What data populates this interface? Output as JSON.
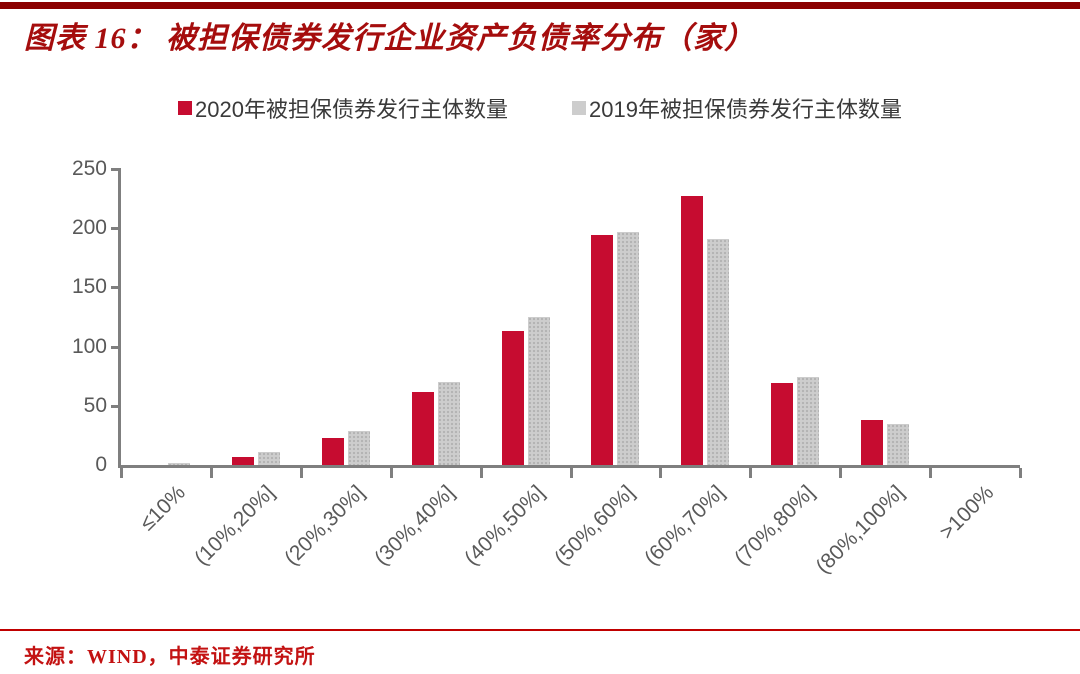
{
  "header": {
    "figure_title": "图表 16： 被担保债券发行企业资产负债率分布（家）"
  },
  "footer": {
    "source": "来源：WIND，中泰证券研究所"
  },
  "colors": {
    "title_red": "#a50d0d",
    "top_rule": "#8b0000",
    "bottom_rule": "#c00000",
    "source_red": "#c31212",
    "axis_gray": "#7f7f7f",
    "tick_text_gray": "#595959",
    "legend_text": "#3a3a3a"
  },
  "chart_data": {
    "type": "bar",
    "title": "被担保债券发行企业资产负债率分布（家）",
    "categories": [
      "≤10%",
      "(10%,20%]",
      "(20%,30%]",
      "(30%,40%]",
      "(40%,50%]",
      "(50%,60%]",
      "(60%,70%]",
      "(70%,80%]",
      "(80%,100%]",
      ">100%"
    ],
    "series": [
      {
        "name": "2020年被担保债券发行主体数量",
        "color": "#c60c30",
        "pattern": "solid",
        "values": [
          0,
          7,
          23,
          62,
          113,
          194,
          227,
          69,
          38,
          0
        ]
      },
      {
        "name": "2019年被担保债券发行主体数量",
        "color": "#cdcdcd",
        "pattern": "dots",
        "values": [
          2,
          11,
          29,
          70,
          125,
          197,
          191,
          74,
          35,
          0
        ]
      }
    ],
    "xlabel": "",
    "ylabel": "",
    "ylim": [
      0,
      250
    ],
    "yticks": [
      0,
      50,
      100,
      150,
      200,
      250
    ],
    "legend_position": "top",
    "grid": false,
    "x_tick_rotation": 45
  }
}
